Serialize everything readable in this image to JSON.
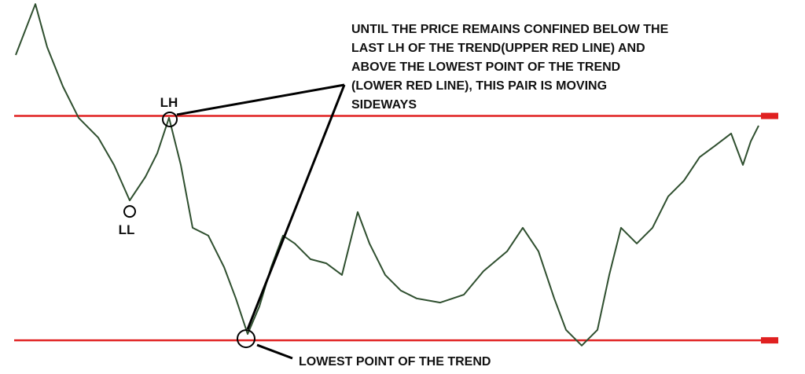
{
  "chart_data": {
    "type": "line",
    "x": [
      20,
      45,
      60,
      80,
      100,
      125,
      145,
      165,
      185,
      200,
      215,
      230,
      245,
      265,
      285,
      300,
      315,
      330,
      345,
      360,
      375,
      395,
      415,
      435,
      455,
      470,
      490,
      510,
      530,
      560,
      590,
      615,
      645,
      665,
      685,
      705,
      720,
      740,
      760,
      775,
      790,
      810,
      830,
      850,
      870,
      890,
      910,
      930,
      945,
      955,
      965
    ],
    "values": [
      85.3,
      98.9,
      87.4,
      76.9,
      68.5,
      63.2,
      55.9,
      46.4,
      52.7,
      59.0,
      68.5,
      55.9,
      39.1,
      37.0,
      28.6,
      20.2,
      10.7,
      18.1,
      28.6,
      37.0,
      34.9,
      30.7,
      29.6,
      26.5,
      43.3,
      34.9,
      26.5,
      22.3,
      20.2,
      19.1,
      21.2,
      27.5,
      32.8,
      39.1,
      32.8,
      20.2,
      11.8,
      7.6,
      11.8,
      26.5,
      39.1,
      34.9,
      39.1,
      47.5,
      51.7,
      58.0,
      61.1,
      64.3,
      55.9,
      62.2,
      66.4
    ],
    "color": "#2f4f2f",
    "xlim": [
      0,
      1024
    ],
    "ylim": [
      0,
      100
    ],
    "hlines": [
      {
        "value": 69,
        "color": "#e02020"
      },
      {
        "value": 9,
        "color": "#e02020"
      }
    ],
    "annotation_lines": [
      "UNTIL THE PRICE REMAINS CONFINED BELOW THE",
      "LAST LH OF THE TREND(UPPER RED LINE) AND",
      "ABOVE THE LOWEST POINT OF THE TREND",
      "(LOWER RED LINE), THIS PAIR IS MOVING",
      "SIDEWAYS"
    ],
    "labels": [
      "LH",
      "LL",
      "LOWEST POINT OF THE TREND"
    ]
  }
}
